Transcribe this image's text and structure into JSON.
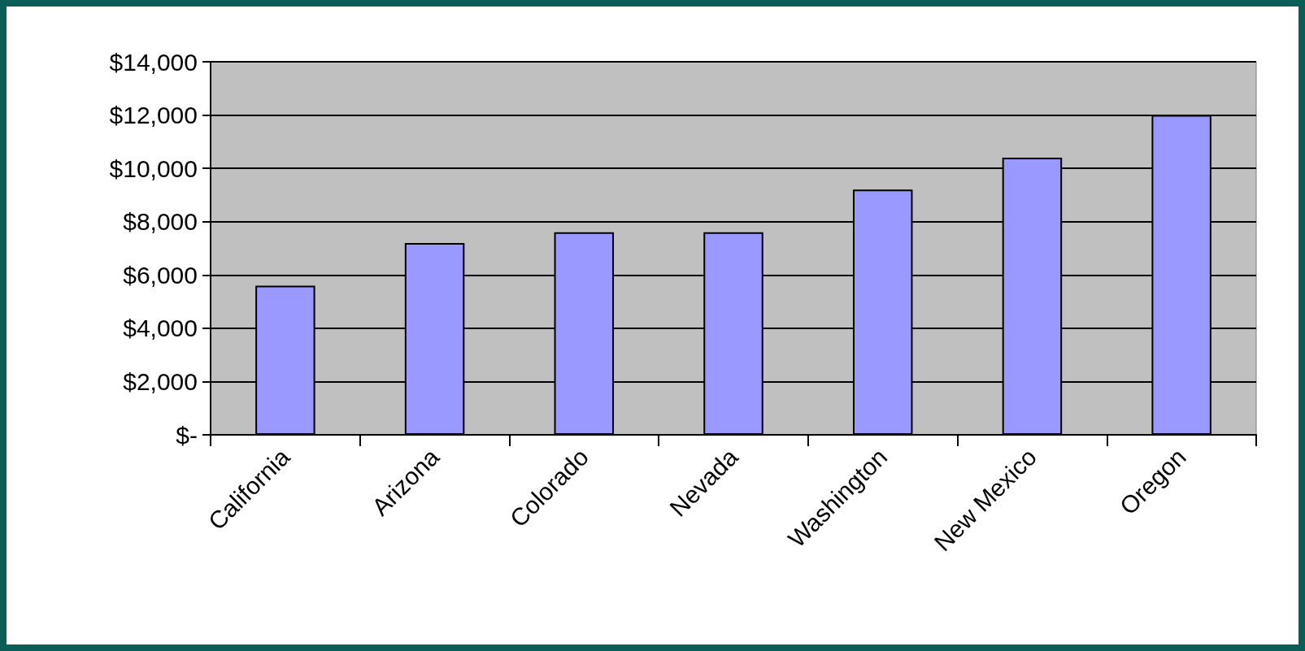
{
  "chart_data": {
    "type": "bar",
    "categories": [
      "California",
      "Arizona",
      "Colorado",
      "Nevada",
      "Washington",
      "New Mexico",
      "Oregon"
    ],
    "values": [
      5600,
      7200,
      7600,
      7600,
      9200,
      10400,
      12000
    ],
    "color": "#9999ff",
    "ylim": [
      0,
      14000
    ],
    "yticks": [
      {
        "value": 0,
        "label": "$-"
      },
      {
        "value": 2000,
        "label": "$2,000"
      },
      {
        "value": 4000,
        "label": "$4,000"
      },
      {
        "value": 6000,
        "label": "$6,000"
      },
      {
        "value": 8000,
        "label": "$8,000"
      },
      {
        "value": 10000,
        "label": "$10,000"
      },
      {
        "value": 12000,
        "label": "$12,000"
      },
      {
        "value": 14000,
        "label": "$14,000"
      }
    ],
    "grid": "y"
  }
}
